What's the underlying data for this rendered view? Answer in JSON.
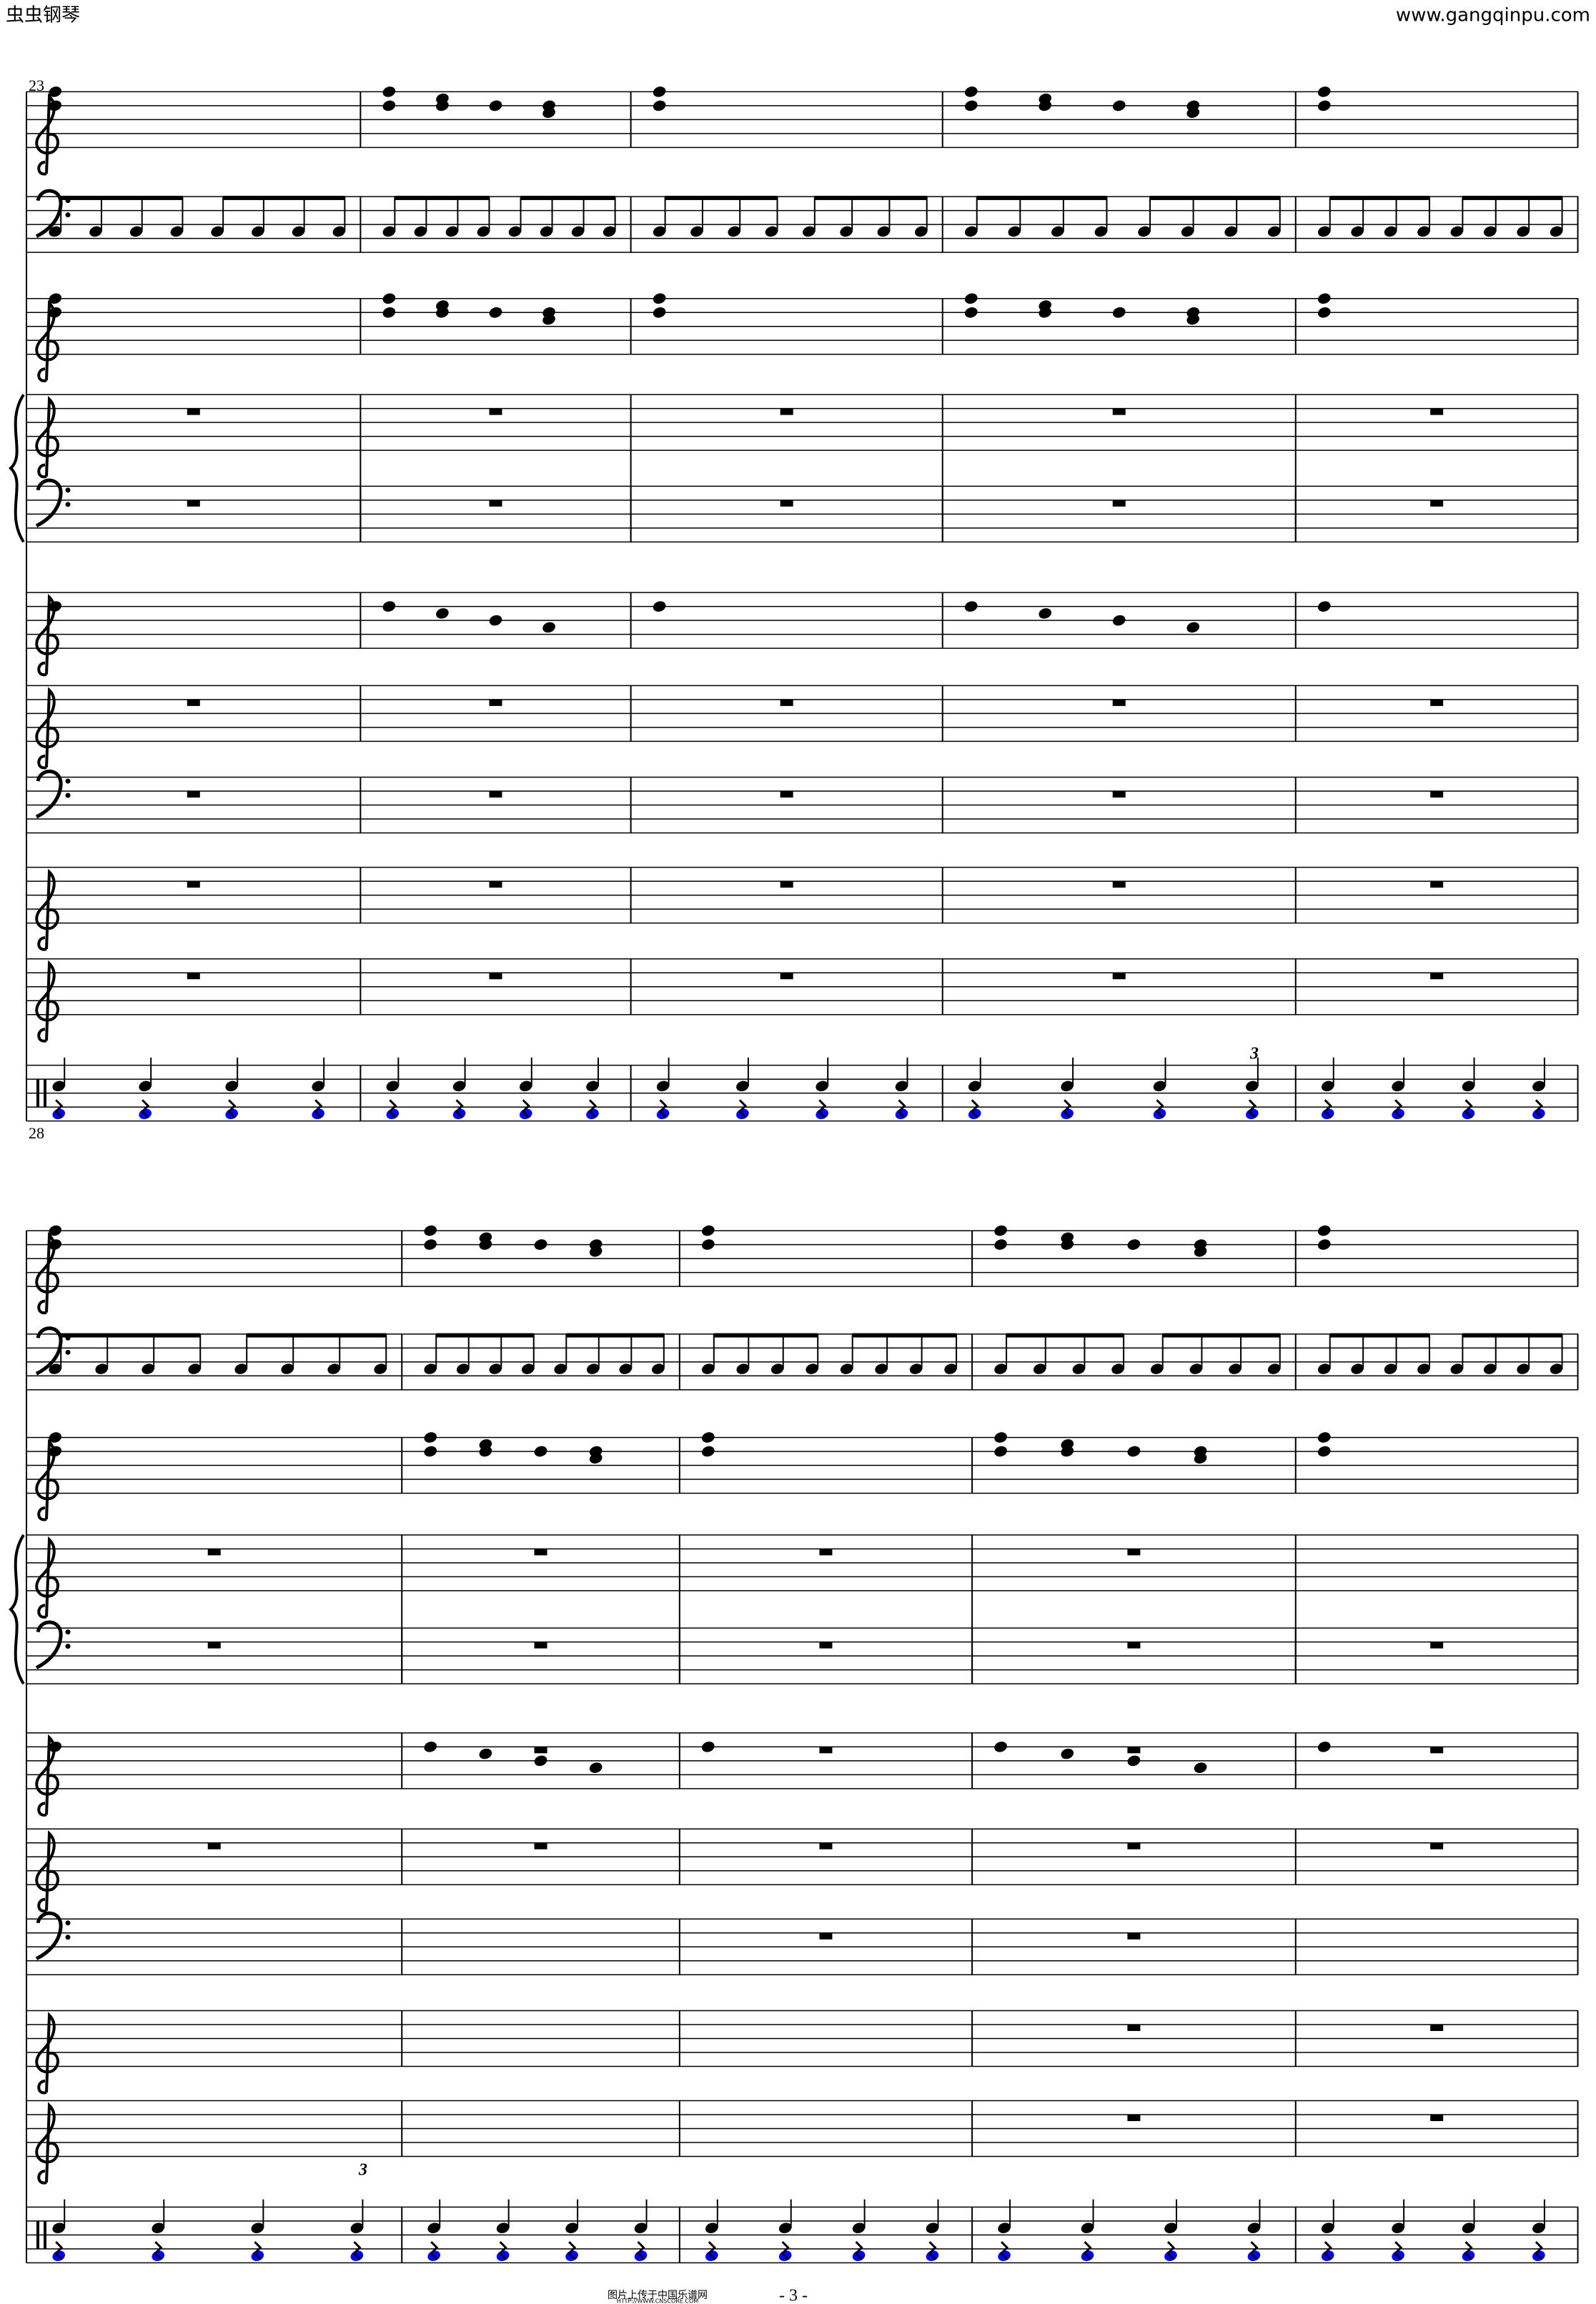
{
  "header": {
    "left": "虫虫钢琴",
    "right": "www.gangqinpu.com"
  },
  "systems": [
    {
      "measure_number": "23",
      "tuplets": [
        "3"
      ]
    },
    {
      "measure_number": "28",
      "tuplets": [
        "3"
      ]
    }
  ],
  "footer": {
    "source": "图片上传于中国乐谱网",
    "url": "HTTP://WWW.CNSCORE.COM",
    "page": "- 3 -"
  }
}
